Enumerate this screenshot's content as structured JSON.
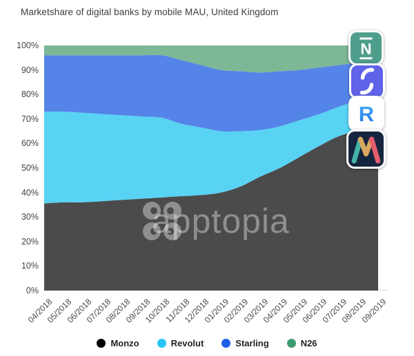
{
  "title": "Marketshare of digital banks by mobile MAU, United Kingdom",
  "watermark": "apptopia",
  "chart_data": {
    "type": "area",
    "stacked": true,
    "normalized_percent": true,
    "title": "Marketshare of digital banks by mobile MAU, United Kingdom",
    "xlabel": "",
    "ylabel": "",
    "ylim": [
      0,
      100
    ],
    "grid": false,
    "legend_position": "bottom",
    "x": [
      "04/2018",
      "05/2018",
      "06/2018",
      "07/2018",
      "08/2018",
      "09/2018",
      "10/2018",
      "11/2018",
      "12/2018",
      "01/2019",
      "02/2019",
      "03/2019",
      "04/2019",
      "05/2019",
      "06/2019",
      "07/2019",
      "08/2019",
      "09/2019"
    ],
    "y_ticks": [
      "0%",
      "10%",
      "20%",
      "30%",
      "40%",
      "50%",
      "60%",
      "70%",
      "80%",
      "90%",
      "100%"
    ],
    "series": [
      {
        "name": "Monzo",
        "area_color": "#4b4b4b",
        "legend_color": "#000000",
        "values": [
          35.5,
          36,
          36,
          36.5,
          37,
          37.5,
          38,
          38.5,
          39,
          40,
          42.5,
          46.5,
          50,
          54.5,
          59,
          63,
          65,
          66
        ]
      },
      {
        "name": "Revolut",
        "area_color": "#58d3f3",
        "legend_color": "#27c4f4",
        "values": [
          37.5,
          37,
          36.5,
          35.5,
          34.5,
          33.5,
          32.5,
          29.5,
          27.5,
          25,
          22.5,
          19,
          17,
          15,
          13,
          12,
          12.5,
          14
        ]
      },
      {
        "name": "Starling",
        "area_color": "#5584e8",
        "legend_color": "#1e5ee8",
        "values": [
          23,
          23,
          23.5,
          24,
          24.5,
          25,
          25.5,
          26,
          25.5,
          25,
          24.5,
          23.5,
          22.5,
          20.5,
          19,
          17,
          15.5,
          14
        ]
      },
      {
        "name": "N26",
        "area_color": "#7eb795",
        "legend_color": "#3f9b72",
        "values": [
          4,
          4,
          4,
          4,
          4,
          4,
          4,
          6,
          8,
          10,
          10.5,
          11,
          10.5,
          10,
          9,
          8,
          7,
          6
        ]
      }
    ]
  },
  "axis_line_color": "#d9d9d9",
  "app_icons": {
    "n26": {
      "glyph": "N",
      "bg": "#4f9e8c"
    },
    "starling": {
      "bg": "#5f63e8"
    },
    "revolut": {
      "glyph": "R",
      "bg": "#ffffff",
      "grad_top": "#47b3f6",
      "grad_bottom": "#2472e9"
    },
    "monzo": {
      "bg": "#16253f",
      "m_left": "#43b3a6",
      "m_mid": "#d8a860",
      "m_right": "#e55d6d"
    }
  }
}
